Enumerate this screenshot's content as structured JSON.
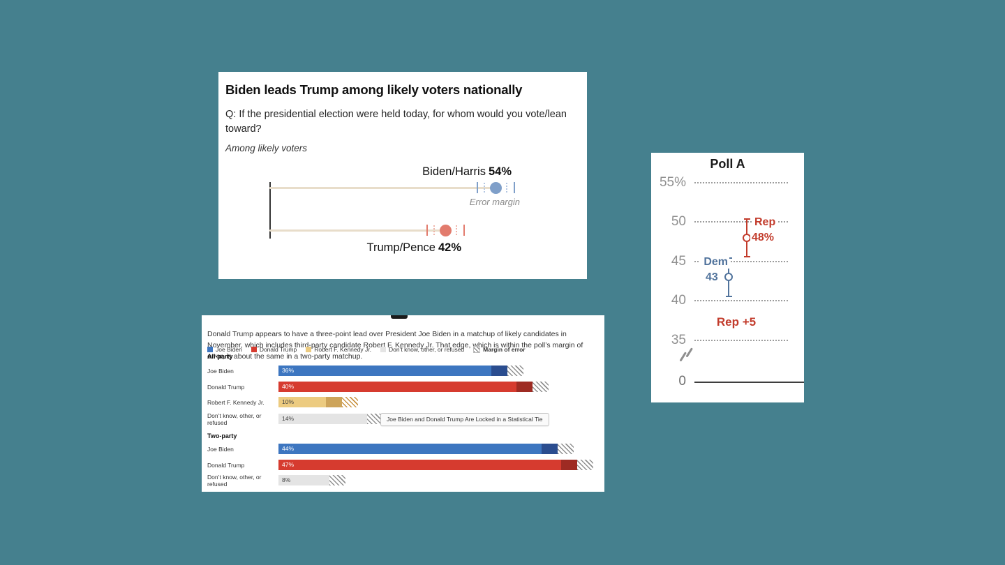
{
  "page": {
    "background": "#45808e"
  },
  "palette": {
    "page_bg": "#45808e",
    "wapo_track": "#e8ddca",
    "wapo_biden": "#7f9fc9",
    "wapo_biden_light": "#b3c6e2",
    "wapo_trump": "#e27b6d",
    "wapo_trump_light": "#f0b4aa",
    "polla_rep": "#c23b2b",
    "polla_dem": "#51739c",
    "bar_biden": "#3d76c0",
    "bar_biden_dark": "#2b4d8f",
    "bar_trump": "#d63b2f",
    "bar_trump_dark": "#9e2b23",
    "bar_rfk": "#eccb80",
    "bar_rfk_dark": "#cda45a",
    "bar_unknown": "#e4e4e4"
  },
  "chart_data": [
    {
      "id": "wapo_dot_plot",
      "type": "scatter",
      "title": "Biden leads Trump among likely voters nationally",
      "subtitle": "Q: If the presidential election were held today, for whom would you vote/lean toward?",
      "note": "Among likely voters",
      "xlim": [
        0,
        80
      ],
      "error_margin_label": "Error margin",
      "series": [
        {
          "name": "Biden/Harris",
          "value": 54,
          "value_label": "54%",
          "error_margin_pts": 4
        },
        {
          "name": "Trump/Pence",
          "value": 42,
          "value_label": "42%",
          "error_margin_pts": 4
        }
      ]
    },
    {
      "id": "poll_a",
      "type": "scatter",
      "title": "Poll A",
      "axis_break": true,
      "ylim": [
        0,
        57
      ],
      "yticks": [
        {
          "label": "55%",
          "value": 55
        },
        {
          "label": "50",
          "value": 50
        },
        {
          "label": "45",
          "value": 45
        },
        {
          "label": "40",
          "value": 40
        },
        {
          "label": "35",
          "value": 35
        },
        {
          "label": "0",
          "value": 0
        }
      ],
      "series": [
        {
          "name": "Rep",
          "value": 48,
          "value_label": "48%",
          "error_low": 45.5,
          "error_high": 50.5
        },
        {
          "name": "Dem",
          "value": 43,
          "value_label": "43",
          "error_low": 40.5,
          "error_high": 45.5
        }
      ],
      "summary": "Rep +5"
    },
    {
      "id": "matchup_bars",
      "type": "bar",
      "description": "Donald Trump appears to have a three-point lead over President Joe Biden in a matchup of likely candidates in November, which includes third-party candidate Robert F. Kennedy Jr. That edge, which is within the poll’s margin of error, is about the same in a two-party matchup.",
      "legend": [
        {
          "label": "Joe Biden"
        },
        {
          "label": "Donald Trump"
        },
        {
          "label": "Robert F. Kennedy Jr."
        },
        {
          "label": "Don’t know, other, or refused"
        },
        {
          "label": "Margin of error"
        }
      ],
      "annotation": "Joe Biden and Donald Trump Are Locked in a Statistical Tie",
      "xlim": [
        0,
        50
      ],
      "sections": [
        {
          "label": "All-party",
          "rows": [
            {
              "label": "Joe Biden",
              "pct": 36,
              "pct_label": "36%"
            },
            {
              "label": "Donald Trump",
              "pct": 40,
              "pct_label": "40%"
            },
            {
              "label": "Robert F. Kennedy Jr.",
              "pct": 10,
              "pct_label": "10%"
            },
            {
              "label": "Don’t know, other, or refused",
              "pct": 14,
              "pct_label": "14%"
            }
          ]
        },
        {
          "label": "Two-party",
          "rows": [
            {
              "label": "Joe Biden",
              "pct": 44,
              "pct_label": "44%"
            },
            {
              "label": "Donald Trump",
              "pct": 47,
              "pct_label": "47%"
            },
            {
              "label": "Don’t know, other, or refused",
              "pct": 8,
              "pct_label": "8%"
            }
          ]
        }
      ]
    }
  ]
}
